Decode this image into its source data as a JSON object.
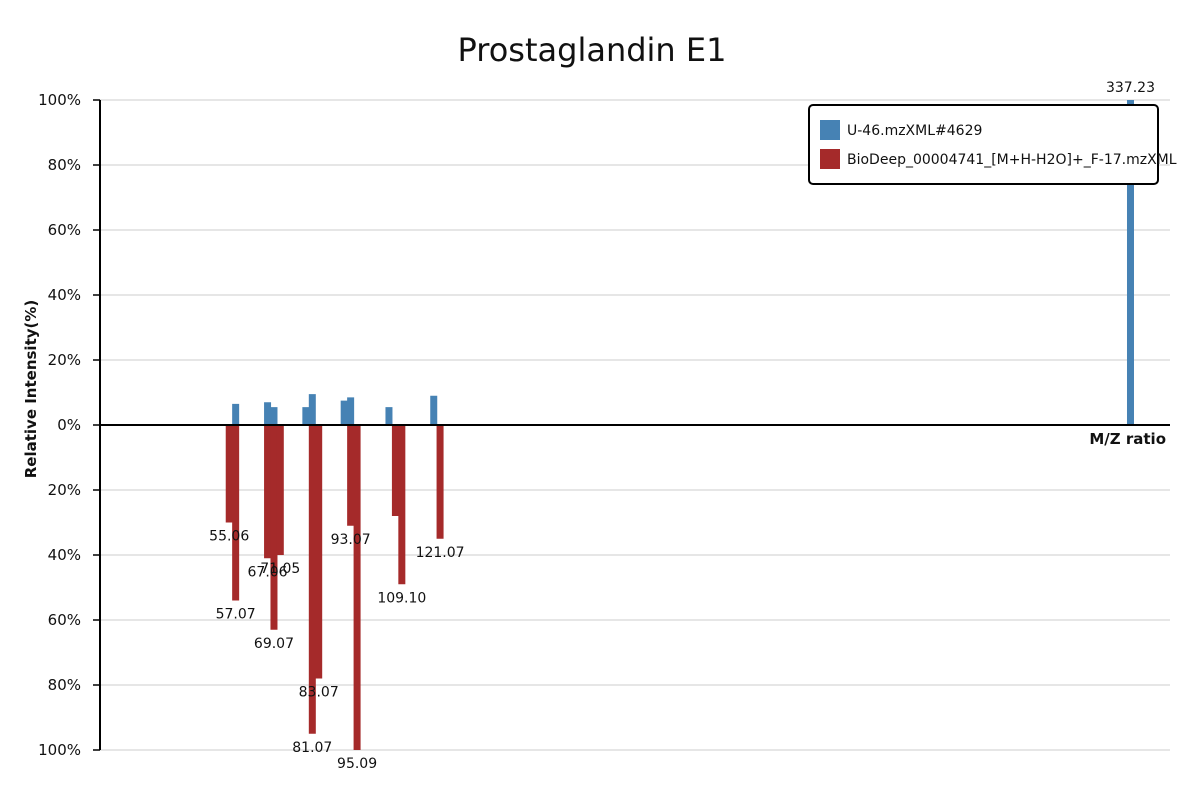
{
  "chart_data": {
    "type": "bar",
    "title": "Prostaglandin E1",
    "xlabel": "M/Z ratio",
    "ylabel": "Relative Intensity(%)",
    "xlim": [
      14.6,
      349.6
    ],
    "ylim": [
      -100,
      100
    ],
    "yticks": [
      {
        "value": 100,
        "label": "100%"
      },
      {
        "value": 80,
        "label": "80%"
      },
      {
        "value": 60,
        "label": "60%"
      },
      {
        "value": 40,
        "label": "40%"
      },
      {
        "value": 20,
        "label": "20%"
      },
      {
        "value": 0,
        "label": "0%"
      },
      {
        "value": -20,
        "label": "20%"
      },
      {
        "value": -40,
        "label": "40%"
      },
      {
        "value": -60,
        "label": "60%"
      },
      {
        "value": -80,
        "label": "80%"
      },
      {
        "value": -100,
        "label": "100%"
      }
    ],
    "grid": true,
    "legend_position": "top-right",
    "series": [
      {
        "name": "U-46.mzXML#4629",
        "color": "#4682b4",
        "direction": "up",
        "peaks": [
          {
            "mz": 57.07,
            "value": 6.5
          },
          {
            "mz": 67.06,
            "value": 7.0
          },
          {
            "mz": 69.07,
            "value": 5.5
          },
          {
            "mz": 79.05,
            "value": 5.5
          },
          {
            "mz": 81.07,
            "value": 9.5
          },
          {
            "mz": 91.05,
            "value": 7.5
          },
          {
            "mz": 93.07,
            "value": 8.5
          },
          {
            "mz": 105.07,
            "value": 5.5
          },
          {
            "mz": 119.09,
            "value": 9.0
          },
          {
            "mz": 337.23,
            "value": 100,
            "label": "337.23"
          }
        ]
      },
      {
        "name": "BioDeep_00004741_[M+H-H2O]+_F-17.mzXML",
        "color": "#a52a2a",
        "direction": "down",
        "peaks": [
          {
            "mz": 55.06,
            "value": 30,
            "label": "55.06"
          },
          {
            "mz": 57.07,
            "value": 54,
            "label": "57.07"
          },
          {
            "mz": 67.06,
            "value": 41,
            "label": "67.06"
          },
          {
            "mz": 69.07,
            "value": 63,
            "label": "69.07"
          },
          {
            "mz": 71.05,
            "value": 40,
            "label": "71.05"
          },
          {
            "mz": 81.07,
            "value": 95,
            "label": "81.07"
          },
          {
            "mz": 83.07,
            "value": 78,
            "label": "83.07"
          },
          {
            "mz": 93.07,
            "value": 31,
            "label": "93.07"
          },
          {
            "mz": 95.09,
            "value": 100,
            "label": "95.09"
          },
          {
            "mz": 107.09,
            "value": 28
          },
          {
            "mz": 109.1,
            "value": 49,
            "label": "109.10"
          },
          {
            "mz": 121.07,
            "value": 35,
            "label": "121.07"
          }
        ]
      }
    ]
  }
}
